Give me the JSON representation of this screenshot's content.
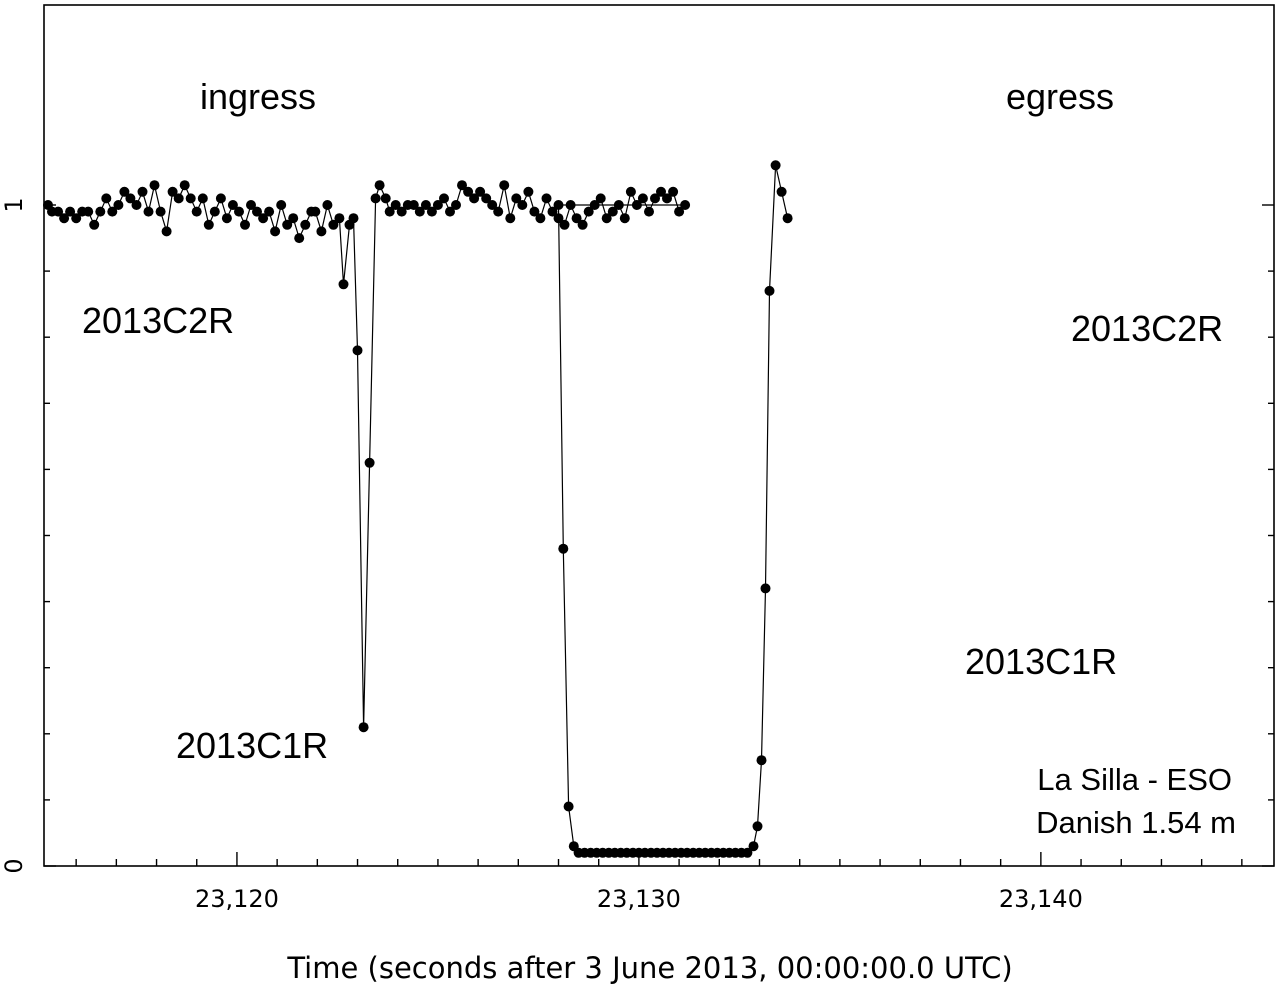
{
  "chart_data": {
    "type": "line",
    "title": "",
    "xlabel": "Time (seconds after 3 June 2013, 00:00:00.0 UTC)",
    "ylabel": "",
    "xlim": [
      23115.2,
      23145.8
    ],
    "ylim": [
      0,
      1.25
    ],
    "x_ticks": [
      23120,
      23130,
      23140
    ],
    "x_tick_labels": [
      "23,120",
      "23,130",
      "23,140"
    ],
    "x_minor_ticks": [
      23116,
      23117,
      23118,
      23119,
      23121,
      23122,
      23123,
      23124,
      23125,
      23126,
      23127,
      23128,
      23129,
      23131,
      23132,
      23133,
      23134,
      23135,
      23136,
      23137,
      23138,
      23139,
      23141,
      23142,
      23143,
      23144,
      23145
    ],
    "y_ticks": [
      0,
      1
    ],
    "y_tick_labels": [
      "0",
      "1"
    ],
    "y_minor_ticks": [
      0.1,
      0.2,
      0.3,
      0.4,
      0.5,
      0.6,
      0.7,
      0.8,
      0.9
    ],
    "grid": false,
    "marker": "filled-circle",
    "series": [
      {
        "points": [
          [
            23115.3,
            1.0
          ],
          [
            23115.4,
            0.99
          ],
          [
            23115.55,
            0.99
          ],
          [
            23115.7,
            0.98
          ],
          [
            23115.85,
            0.99
          ],
          [
            23116.0,
            0.98
          ],
          [
            23116.15,
            0.99
          ],
          [
            23116.3,
            0.99
          ],
          [
            23116.45,
            0.97
          ],
          [
            23116.6,
            0.99
          ],
          [
            23116.75,
            1.01
          ],
          [
            23116.9,
            0.99
          ],
          [
            23117.05,
            1.0
          ],
          [
            23117.2,
            1.02
          ],
          [
            23117.35,
            1.01
          ],
          [
            23117.5,
            1.0
          ],
          [
            23117.65,
            1.02
          ],
          [
            23117.8,
            0.99
          ],
          [
            23117.95,
            1.03
          ],
          [
            23118.1,
            0.99
          ],
          [
            23118.25,
            0.96
          ],
          [
            23118.4,
            1.02
          ],
          [
            23118.55,
            1.01
          ],
          [
            23118.7,
            1.03
          ],
          [
            23118.85,
            1.01
          ],
          [
            23119.0,
            0.99
          ],
          [
            23119.15,
            1.01
          ],
          [
            23119.3,
            0.97
          ],
          [
            23119.45,
            0.99
          ],
          [
            23119.6,
            1.01
          ],
          [
            23119.75,
            0.98
          ],
          [
            23119.9,
            1.0
          ],
          [
            23120.05,
            0.99
          ],
          [
            23120.2,
            0.97
          ],
          [
            23120.35,
            1.0
          ],
          [
            23120.5,
            0.99
          ],
          [
            23120.65,
            0.98
          ],
          [
            23120.8,
            0.99
          ],
          [
            23120.95,
            0.96
          ],
          [
            23121.1,
            1.0
          ],
          [
            23121.25,
            0.97
          ],
          [
            23121.4,
            0.98
          ],
          [
            23121.55,
            0.95
          ],
          [
            23121.7,
            0.97
          ],
          [
            23121.85,
            0.99
          ],
          [
            23121.95,
            0.99
          ],
          [
            23122.1,
            0.96
          ],
          [
            23122.25,
            1.0
          ],
          [
            23122.4,
            0.97
          ],
          [
            23122.55,
            0.98
          ],
          [
            23122.65,
            0.88
          ],
          [
            23122.8,
            0.97
          ],
          [
            23122.9,
            0.98
          ],
          [
            23123.0,
            0.78
          ],
          [
            23123.15,
            0.21
          ],
          [
            23123.3,
            0.61
          ],
          [
            23123.45,
            1.01
          ],
          [
            23123.55,
            1.03
          ],
          [
            23123.7,
            1.01
          ],
          [
            23123.8,
            0.99
          ],
          [
            23123.95,
            1.0
          ],
          [
            23124.1,
            0.99
          ],
          [
            23124.25,
            1.0
          ],
          [
            23124.4,
            1.0
          ],
          [
            23124.55,
            0.99
          ],
          [
            23124.7,
            1.0
          ],
          [
            23124.85,
            0.99
          ],
          [
            23125.0,
            1.0
          ],
          [
            23125.15,
            1.01
          ],
          [
            23125.3,
            0.99
          ],
          [
            23125.45,
            1.0
          ],
          [
            23125.6,
            1.03
          ],
          [
            23125.75,
            1.02
          ],
          [
            23125.9,
            1.01
          ],
          [
            23126.05,
            1.02
          ],
          [
            23126.2,
            1.01
          ],
          [
            23126.35,
            1.0
          ],
          [
            23126.5,
            0.99
          ],
          [
            23126.65,
            1.03
          ],
          [
            23126.8,
            0.98
          ],
          [
            23126.95,
            1.01
          ],
          [
            23127.1,
            1.0
          ],
          [
            23127.25,
            1.02
          ],
          [
            23127.4,
            0.99
          ],
          [
            23127.55,
            0.98
          ],
          [
            23127.7,
            1.01
          ],
          [
            23127.85,
            0.99
          ],
          [
            23128.0,
            0.98
          ],
          [
            23128.15,
            0.97
          ],
          [
            23128.3,
            1.0
          ],
          [
            23128.45,
            0.98
          ],
          [
            23128.6,
            0.97
          ],
          [
            23128.75,
            0.99
          ],
          [
            23128.9,
            1.0
          ],
          [
            23129.05,
            1.01
          ],
          [
            23129.2,
            0.98
          ],
          [
            23129.35,
            0.99
          ],
          [
            23129.5,
            1.0
          ],
          [
            23129.65,
            0.98
          ],
          [
            23129.8,
            1.02
          ],
          [
            23129.95,
            1.0
          ],
          [
            23130.1,
            1.01
          ],
          [
            23130.25,
            0.99
          ],
          [
            23130.4,
            1.01
          ],
          [
            23130.55,
            1.02
          ],
          [
            23130.7,
            1.01
          ],
          [
            23130.85,
            1.02
          ],
          [
            23131.0,
            0.99
          ],
          [
            23131.15,
            1.0
          ],
          [
            23128.0,
            1.0
          ],
          [
            23128.12,
            0.48
          ],
          [
            23128.25,
            0.09
          ],
          [
            23128.38,
            0.03
          ],
          [
            23128.5,
            0.02
          ],
          [
            23128.65,
            0.02
          ],
          [
            23128.8,
            0.02
          ],
          [
            23128.95,
            0.02
          ],
          [
            23129.1,
            0.02
          ],
          [
            23129.25,
            0.02
          ],
          [
            23129.4,
            0.02
          ],
          [
            23129.55,
            0.02
          ],
          [
            23129.7,
            0.02
          ],
          [
            23129.85,
            0.02
          ],
          [
            23130.0,
            0.02
          ],
          [
            23130.15,
            0.02
          ],
          [
            23130.3,
            0.02
          ],
          [
            23130.45,
            0.02
          ],
          [
            23130.6,
            0.02
          ],
          [
            23130.75,
            0.02
          ],
          [
            23130.9,
            0.02
          ],
          [
            23131.05,
            0.02
          ],
          [
            23131.2,
            0.02
          ],
          [
            23131.35,
            0.02
          ],
          [
            23131.5,
            0.02
          ],
          [
            23131.65,
            0.02
          ],
          [
            23131.8,
            0.02
          ],
          [
            23131.95,
            0.02
          ],
          [
            23132.1,
            0.02
          ],
          [
            23132.25,
            0.02
          ],
          [
            23132.4,
            0.02
          ],
          [
            23132.55,
            0.02
          ],
          [
            23132.7,
            0.02
          ],
          [
            23132.85,
            0.03
          ],
          [
            23132.95,
            0.06
          ],
          [
            23133.05,
            0.16
          ],
          [
            23133.15,
            0.42
          ],
          [
            23133.25,
            0.87
          ],
          [
            23133.4,
            1.06
          ],
          [
            23133.55,
            1.02
          ],
          [
            23133.7,
            0.98
          ]
        ]
      }
    ],
    "annotations": [
      {
        "text": "ingress"
      },
      {
        "text": "egress"
      },
      {
        "text": "2013C2R"
      },
      {
        "text": "2013C1R"
      },
      {
        "text": "2013C2R"
      },
      {
        "text": "2013C1R"
      },
      {
        "text": "La Silla - ESO"
      },
      {
        "text": "Danish 1.54 m"
      }
    ]
  }
}
